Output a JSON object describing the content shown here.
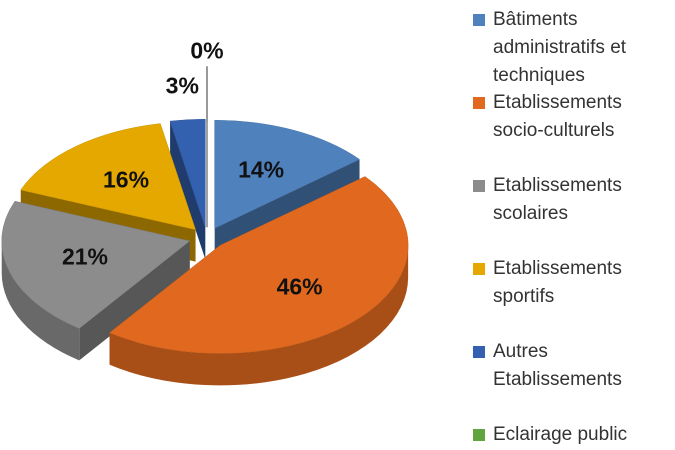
{
  "chart_data": {
    "type": "pie",
    "categories": [
      "Bâtiments administratifs et techniques",
      "Etablissements socio-culturels",
      "Etablissements scolaires",
      "Etablissements sportifs",
      "Autres Etablissements",
      "Eclairage public"
    ],
    "values": [
      14,
      46,
      21,
      16,
      3,
      0
    ],
    "value_labels": [
      "14%",
      "46%",
      "21%",
      "16%",
      "3%",
      "0%"
    ],
    "colors": [
      "#4f81bd",
      "#e0691f",
      "#8c8c8c",
      "#e4a800",
      "#3460b0",
      "#5fa43c"
    ],
    "legend": "right"
  }
}
